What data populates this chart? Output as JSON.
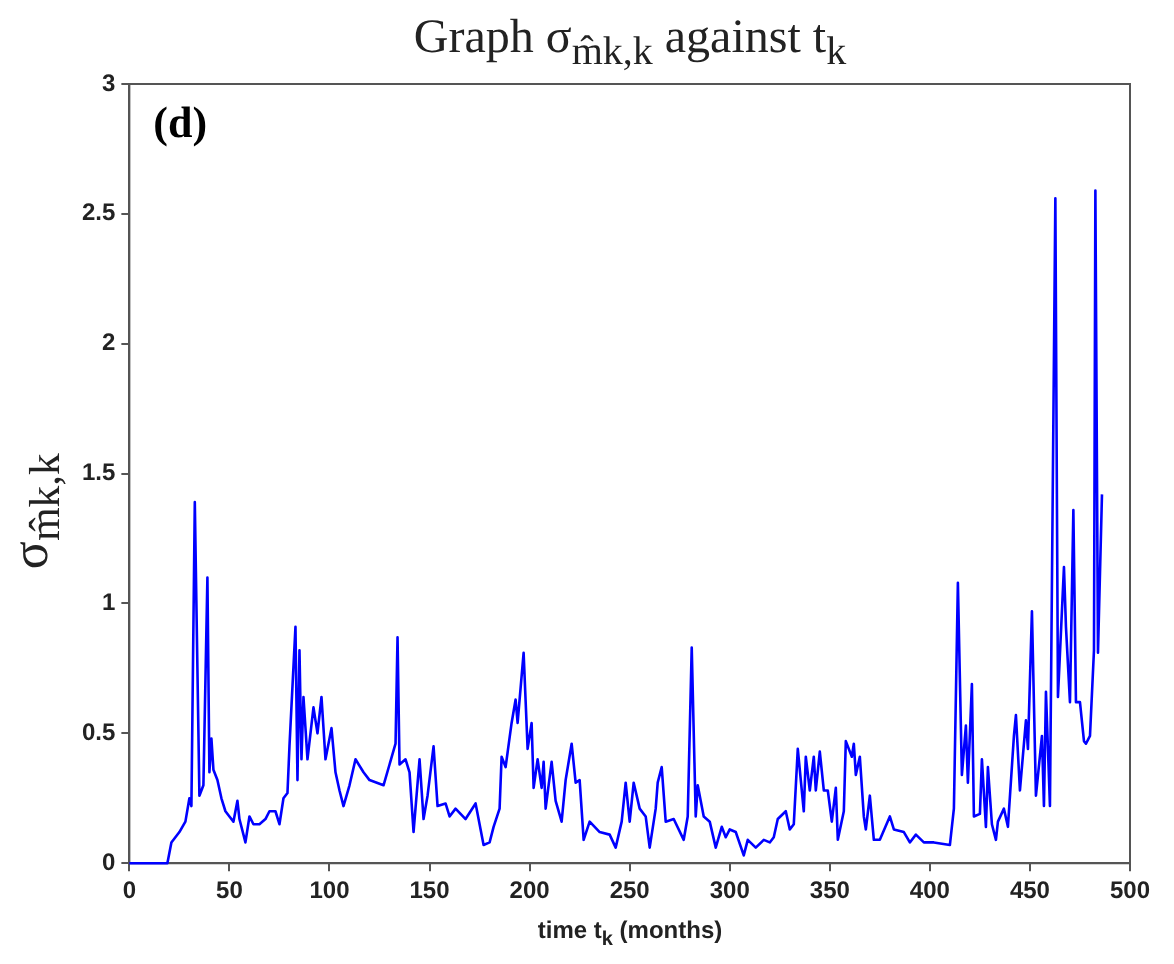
{
  "chart_data": {
    "type": "line",
    "title": "Graph σ$_{m̂k,k}$ against t$_{k}$",
    "xlabel": "time t$_{k}$ (months)",
    "ylabel": "σ$_{m̂k,k}$",
    "annotations": [
      "(d)"
    ],
    "xlim": [
      0,
      500
    ],
    "xticks": [
      0,
      50,
      100,
      150,
      200,
      250,
      300,
      350,
      400,
      450,
      500
    ],
    "ylim": [
      0,
      3
    ],
    "yticks": [
      0,
      0.5,
      1,
      1.5,
      2,
      2.5,
      3
    ],
    "grid": false,
    "legend": false,
    "marker": "none",
    "line_style": "solid",
    "x": [
      0,
      19,
      21,
      23,
      25,
      28,
      30,
      31,
      32.7,
      35,
      37,
      39,
      40,
      41,
      42,
      44,
      46,
      48,
      50,
      52,
      54,
      55,
      58,
      60,
      62,
      65,
      68,
      70,
      73,
      75,
      77,
      79,
      80,
      83,
      84,
      85,
      86,
      87,
      89,
      92,
      94,
      96,
      98,
      101,
      103,
      105,
      107,
      110,
      113,
      117,
      120,
      127,
      130,
      133,
      134,
      135,
      138,
      140,
      142,
      145,
      147,
      149,
      152,
      154,
      158,
      160,
      163,
      168,
      173,
      177,
      180,
      182,
      185,
      186,
      188,
      191,
      193,
      194,
      197,
      199,
      201,
      202,
      204,
      206,
      207,
      208,
      211,
      213,
      216,
      218,
      221,
      223,
      225,
      227,
      230,
      235,
      240,
      243,
      246,
      248,
      250,
      252,
      255,
      258,
      260,
      263,
      264,
      266,
      268,
      272,
      277,
      279,
      281,
      283,
      284,
      287,
      290,
      293,
      296,
      298,
      300,
      303,
      307,
      309,
      313,
      317,
      320,
      322,
      324,
      328,
      330,
      332,
      334,
      337,
      338,
      340,
      342,
      343,
      345,
      347,
      349,
      351,
      353,
      354,
      357,
      358,
      361,
      362,
      363,
      365,
      367,
      368,
      370,
      372,
      375,
      380,
      382,
      387,
      390,
      393,
      397,
      402,
      410,
      412,
      414,
      416,
      418,
      419,
      421,
      422,
      425,
      426,
      428,
      429,
      431,
      433,
      434,
      437,
      439,
      442,
      443,
      445,
      448,
      449,
      451,
      453,
      456,
      457,
      458,
      460,
      462.7,
      464,
      467,
      468,
      470,
      471.7,
      473,
      475,
      477,
      478,
      480,
      482,
      482.7,
      484,
      486
    ],
    "series": [
      {
        "color": "#0000ff",
        "values": [
          0,
          0,
          0.08,
          0.1,
          0.12,
          0.16,
          0.25,
          0.22,
          1.39,
          0.26,
          0.3,
          1.1,
          0.35,
          0.48,
          0.36,
          0.32,
          0.25,
          0.2,
          0.18,
          0.16,
          0.24,
          0.17,
          0.08,
          0.18,
          0.15,
          0.15,
          0.17,
          0.2,
          0.2,
          0.15,
          0.25,
          0.27,
          0.45,
          0.91,
          0.32,
          0.82,
          0.4,
          0.64,
          0.4,
          0.6,
          0.5,
          0.64,
          0.4,
          0.52,
          0.35,
          0.28,
          0.22,
          0.3,
          0.4,
          0.35,
          0.32,
          0.3,
          0.38,
          0.46,
          0.87,
          0.38,
          0.4,
          0.35,
          0.12,
          0.4,
          0.17,
          0.26,
          0.45,
          0.22,
          0.23,
          0.18,
          0.21,
          0.17,
          0.23,
          0.07,
          0.08,
          0.14,
          0.21,
          0.41,
          0.37,
          0.54,
          0.63,
          0.54,
          0.81,
          0.44,
          0.54,
          0.29,
          0.4,
          0.29,
          0.39,
          0.21,
          0.39,
          0.24,
          0.16,
          0.32,
          0.46,
          0.31,
          0.32,
          0.09,
          0.16,
          0.12,
          0.11,
          0.06,
          0.16,
          0.31,
          0.16,
          0.31,
          0.21,
          0.18,
          0.06,
          0.21,
          0.31,
          0.37,
          0.16,
          0.17,
          0.09,
          0.18,
          0.83,
          0.18,
          0.3,
          0.18,
          0.16,
          0.06,
          0.14,
          0.1,
          0.13,
          0.12,
          0.03,
          0.09,
          0.06,
          0.09,
          0.08,
          0.1,
          0.17,
          0.2,
          0.13,
          0.15,
          0.44,
          0.2,
          0.41,
          0.28,
          0.41,
          0.28,
          0.43,
          0.28,
          0.28,
          0.16,
          0.29,
          0.09,
          0.2,
          0.47,
          0.41,
          0.46,
          0.34,
          0.41,
          0.18,
          0.13,
          0.26,
          0.09,
          0.09,
          0.18,
          0.13,
          0.12,
          0.08,
          0.11,
          0.08,
          0.08,
          0.07,
          0.21,
          1.08,
          0.34,
          0.53,
          0.31,
          0.69,
          0.18,
          0.19,
          0.4,
          0.14,
          0.37,
          0.15,
          0.09,
          0.16,
          0.21,
          0.14,
          0.49,
          0.57,
          0.28,
          0.55,
          0.44,
          0.97,
          0.26,
          0.49,
          0.22,
          0.66,
          0.22,
          2.56,
          0.64,
          1.14,
          0.91,
          0.62,
          1.36,
          0.62,
          0.62,
          0.47,
          0.46,
          0.49,
          0.82,
          2.59,
          0.81,
          1.42
        ]
      }
    ]
  }
}
